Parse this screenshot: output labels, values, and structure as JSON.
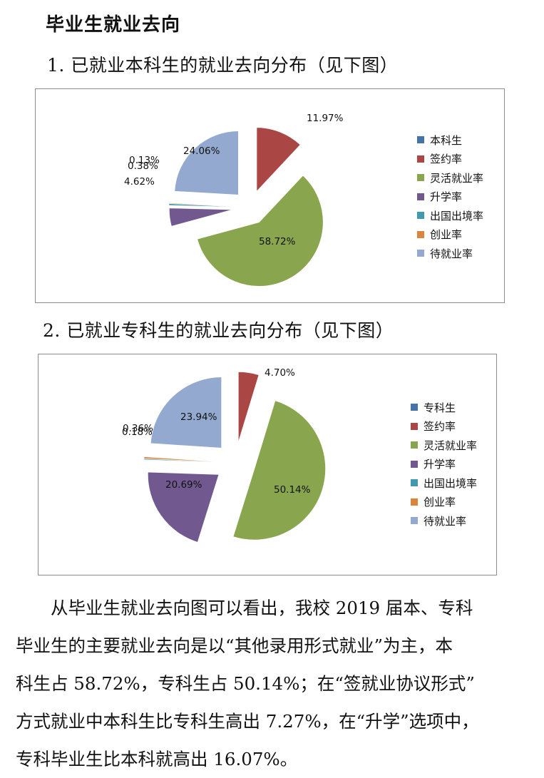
{
  "heading": "毕业生就业去向",
  "section1_title": "1. 已就业本科生的就业去向分布（见下图）",
  "section2_title": "2. 已就业专科生的就业去向分布（见下图）",
  "chart_data": [
    {
      "type": "pie",
      "exploded": true,
      "categories": [
        "本科生",
        "签约率",
        "灵活就业率",
        "升学率",
        "出国出境率",
        "创业率",
        "待就业率"
      ],
      "values": [
        0,
        11.97,
        58.72,
        4.62,
        0.38,
        0.13,
        24.06
      ],
      "data_labels": [
        "",
        "11.97%",
        "58.72%",
        "4.62%",
        "0.38%",
        "0.13%",
        "24.06%"
      ],
      "colors": [
        "#4572A7",
        "#AA4643",
        "#89A54E",
        "#71588F",
        "#4198AF",
        "#DB843D",
        "#93A9CF"
      ],
      "legend_position": "right"
    },
    {
      "type": "pie",
      "exploded": true,
      "categories": [
        "专科生",
        "签约率",
        "灵活就业率",
        "升学率",
        "出国出境率",
        "创业率",
        "待就业率"
      ],
      "values": [
        0,
        4.7,
        50.14,
        20.69,
        0.18,
        0.36,
        23.94
      ],
      "data_labels": [
        "",
        "4.70%",
        "50.14%",
        "20.69%",
        "0.18%",
        "0.36%",
        "23.94%"
      ],
      "colors": [
        "#4572A7",
        "#AA4643",
        "#89A54E",
        "#71588F",
        "#4198AF",
        "#DB843D",
        "#93A9CF"
      ],
      "legend_position": "right"
    }
  ],
  "paragraph": {
    "lines": [
      "　　从毕业生就业去向图可以看出，我校 2019 届本、专科",
      "毕业生的主要就业去向是以“其他录用形式就业”为主，本",
      "科生占 58.72%，专科生占 50.14%；在“签就业协议形式”",
      "方式就业中本科生比专科生高出 7.27%，在“升学”选项中，",
      "专科毕业生比本科就高出 16.07%。"
    ]
  }
}
